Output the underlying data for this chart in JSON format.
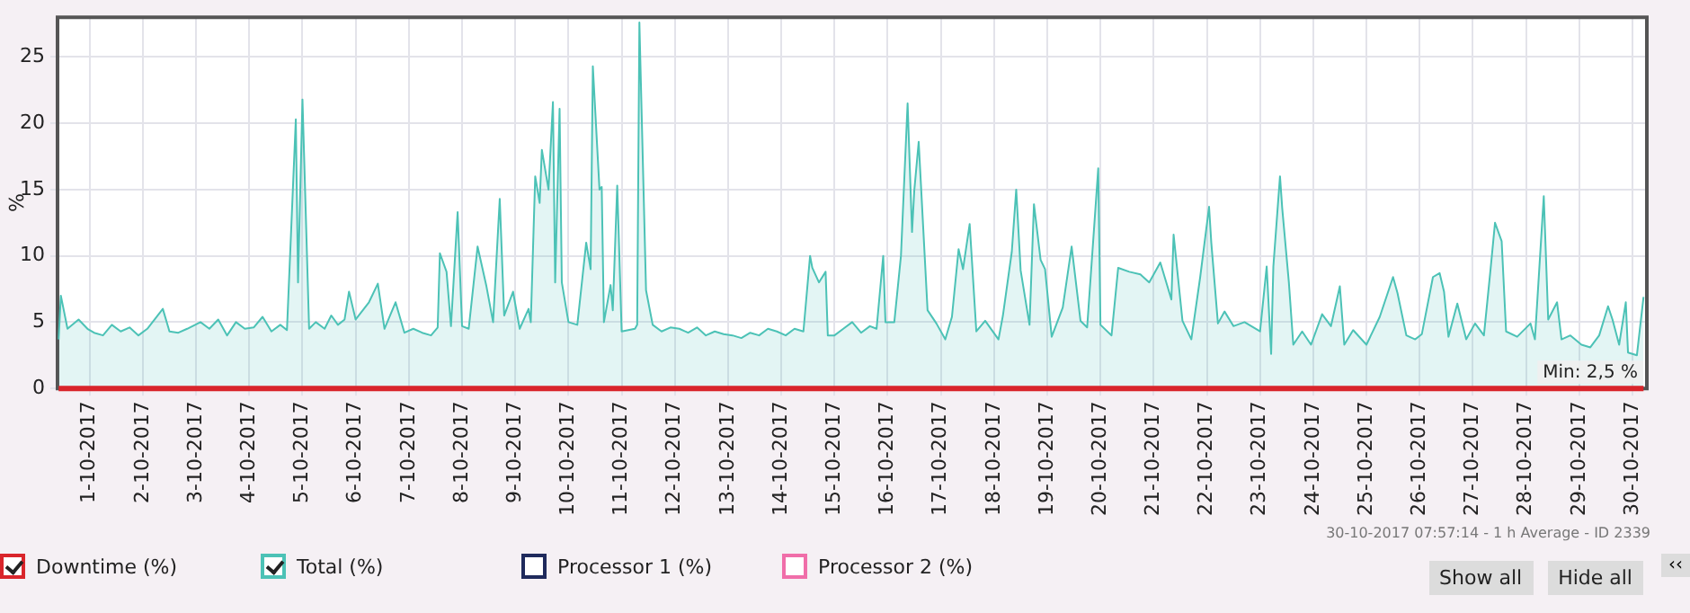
{
  "chart_data": {
    "type": "area",
    "ylabel": "%",
    "xlim": [
      "2017-09-30T09:30",
      "2017-10-30T06:30"
    ],
    "ylim": [
      0,
      28
    ],
    "yticks": [
      0,
      5,
      10,
      15,
      20,
      25
    ],
    "xticks": [
      {
        "value": "2017-10-01",
        "label": "1-10-2017"
      },
      {
        "value": "2017-10-02",
        "label": "2-10-2017"
      },
      {
        "value": "2017-10-03",
        "label": "3-10-2017"
      },
      {
        "value": "2017-10-04",
        "label": "4-10-2017"
      },
      {
        "value": "2017-10-05",
        "label": "5-10-2017"
      },
      {
        "value": "2017-10-06",
        "label": "6-10-2017"
      },
      {
        "value": "2017-10-07",
        "label": "7-10-2017"
      },
      {
        "value": "2017-10-08",
        "label": "8-10-2017"
      },
      {
        "value": "2017-10-09",
        "label": "9-10-2017"
      },
      {
        "value": "2017-10-10",
        "label": "10-10-2017"
      },
      {
        "value": "2017-10-11",
        "label": "11-10-2017"
      },
      {
        "value": "2017-10-12",
        "label": "12-10-2017"
      },
      {
        "value": "2017-10-13",
        "label": "13-10-2017"
      },
      {
        "value": "2017-10-14",
        "label": "14-10-2017"
      },
      {
        "value": "2017-10-15",
        "label": "15-10-2017"
      },
      {
        "value": "2017-10-16",
        "label": "16-10-2017"
      },
      {
        "value": "2017-10-17",
        "label": "17-10-2017"
      },
      {
        "value": "2017-10-18",
        "label": "18-10-2017"
      },
      {
        "value": "2017-10-19",
        "label": "19-10-2017"
      },
      {
        "value": "2017-10-20",
        "label": "20-10-2017"
      },
      {
        "value": "2017-10-21",
        "label": "21-10-2017"
      },
      {
        "value": "2017-10-22",
        "label": "22-10-2017"
      },
      {
        "value": "2017-10-23",
        "label": "23-10-2017"
      },
      {
        "value": "2017-10-24",
        "label": "24-10-2017"
      },
      {
        "value": "2017-10-25",
        "label": "25-10-2017"
      },
      {
        "value": "2017-10-26",
        "label": "26-10-2017"
      },
      {
        "value": "2017-10-27",
        "label": "27-10-2017"
      },
      {
        "value": "2017-10-28",
        "label": "28-10-2017"
      },
      {
        "value": "2017-10-29",
        "label": "29-10-2017"
      },
      {
        "value": "2017-10-30",
        "label": "30-10-2017"
      }
    ],
    "grid": true,
    "legend": "bottom left",
    "series": [
      {
        "name": "Downtime (%)",
        "type": "line",
        "color": "#d9252b",
        "x": [
          "2017-09-30T10:00",
          "2017-10-30T05:00"
        ],
        "values": [
          0,
          0
        ]
      },
      {
        "name": "Total (%)",
        "type": "area",
        "color": "#4cc2b6",
        "x": [
          "2017-09-30T10:00",
          "2017-09-30T11:00",
          "2017-09-30T14:00",
          "2017-09-30T19:00",
          "2017-09-30T23:00",
          "2017-10-01T02:00",
          "2017-10-01T06:00",
          "2017-10-01T10:00",
          "2017-10-01T14:00",
          "2017-10-01T18:00",
          "2017-10-01T22:00",
          "2017-10-02T02:00",
          "2017-10-02T09:00",
          "2017-10-02T12:00",
          "2017-10-02T16:00",
          "2017-10-02T20:00",
          "2017-10-03T02:00",
          "2017-10-03T06:00",
          "2017-10-03T10:00",
          "2017-10-03T14:00",
          "2017-10-03T18:00",
          "2017-10-03T22:00",
          "2017-10-04T02:00",
          "2017-10-04T06:00",
          "2017-10-04T10:00",
          "2017-10-04T14:00",
          "2017-10-04T17:00",
          "2017-10-04T21:00",
          "2017-10-04T22:00",
          "2017-10-05T00:00",
          "2017-10-05T03:00",
          "2017-10-05T06:00",
          "2017-10-05T10:00",
          "2017-10-05T13:00",
          "2017-10-05T16:00",
          "2017-10-05T19:00",
          "2017-10-05T21:00",
          "2017-10-06T00:00",
          "2017-10-06T06:00",
          "2017-10-06T10:00",
          "2017-10-06T13:00",
          "2017-10-06T18:00",
          "2017-10-06T22:00",
          "2017-10-07T02:00",
          "2017-10-07T06:00",
          "2017-10-07T10:00",
          "2017-10-07T13:00",
          "2017-10-07T14:00",
          "2017-10-07T17:00",
          "2017-10-07T19:00",
          "2017-10-07T22:00",
          "2017-10-08T00:00",
          "2017-10-08T03:00",
          "2017-10-08T07:00",
          "2017-10-08T11:00",
          "2017-10-08T14:00",
          "2017-10-08T17:00",
          "2017-10-08T19:00",
          "2017-10-08T23:00",
          "2017-10-09T02:00",
          "2017-10-09T06:00",
          "2017-10-09T07:00",
          "2017-10-09T09:00",
          "2017-10-09T11:00",
          "2017-10-09T12:00",
          "2017-10-09T15:00",
          "2017-10-09T17:00",
          "2017-10-09T18:00",
          "2017-10-09T20:00",
          "2017-10-09T21:00",
          "2017-10-10T00:00",
          "2017-10-10T04:00",
          "2017-10-10T08:00",
          "2017-10-10T10:00",
          "2017-10-10T11:00",
          "2017-10-10T14:00",
          "2017-10-10T15:00",
          "2017-10-10T16:00",
          "2017-10-10T19:00",
          "2017-10-10T20:00",
          "2017-10-10T22:00",
          "2017-10-11T00:00",
          "2017-10-11T06:00",
          "2017-10-11T07:00",
          "2017-10-11T08:00",
          "2017-10-11T11:00",
          "2017-10-11T14:00",
          "2017-10-11T18:00",
          "2017-10-11T22:00",
          "2017-10-12T02:00",
          "2017-10-12T06:00",
          "2017-10-12T10:00",
          "2017-10-12T14:00",
          "2017-10-12T18:00",
          "2017-10-12T22:00",
          "2017-10-13T02:00",
          "2017-10-13T06:00",
          "2017-10-13T10:00",
          "2017-10-13T14:00",
          "2017-10-13T18:00",
          "2017-10-13T22:00",
          "2017-10-14T02:00",
          "2017-10-14T06:00",
          "2017-10-14T10:00",
          "2017-10-14T13:00",
          "2017-10-14T14:00",
          "2017-10-14T17:00",
          "2017-10-14T20:00",
          "2017-10-14T21:00",
          "2017-10-15T00:00",
          "2017-10-15T04:00",
          "2017-10-15T08:00",
          "2017-10-15T12:00",
          "2017-10-15T16:00",
          "2017-10-15T19:00",
          "2017-10-15T22:00",
          "2017-10-15T23:00",
          "2017-10-16T03:00",
          "2017-10-16T06:00",
          "2017-10-16T09:00",
          "2017-10-16T11:00",
          "2017-10-16T12:00",
          "2017-10-16T14:00",
          "2017-10-16T18:00",
          "2017-10-16T22:00",
          "2017-10-17T02:00",
          "2017-10-17T05:00",
          "2017-10-17T08:00",
          "2017-10-17T10:00",
          "2017-10-17T13:00",
          "2017-10-17T16:00",
          "2017-10-17T20:00",
          "2017-10-18T02:00",
          "2017-10-18T04:00",
          "2017-10-18T08:00",
          "2017-10-18T10:00",
          "2017-10-18T12:00",
          "2017-10-18T16:00",
          "2017-10-18T18:00",
          "2017-10-18T21:00",
          "2017-10-18T23:00",
          "2017-10-19T02:00",
          "2017-10-19T07:00",
          "2017-10-19T11:00",
          "2017-10-19T15:00",
          "2017-10-19T18:00",
          "2017-10-19T23:00",
          "2017-10-20T00:00",
          "2017-10-20T05:00",
          "2017-10-20T08:00",
          "2017-10-20T13:00",
          "2017-10-20T18:00",
          "2017-10-20T22:00",
          "2017-10-21T03:00",
          "2017-10-21T08:00",
          "2017-10-21T09:00",
          "2017-10-21T13:00",
          "2017-10-21T17:00",
          "2017-10-21T21:00",
          "2017-10-22T01:00",
          "2017-10-22T02:00",
          "2017-10-22T05:00",
          "2017-10-22T08:00",
          "2017-10-22T12:00",
          "2017-10-22T17:00",
          "2017-10-23T00:00",
          "2017-10-23T03:00",
          "2017-10-23T05:00",
          "2017-10-23T06:00",
          "2017-10-23T09:00",
          "2017-10-23T10:00",
          "2017-10-23T13:00",
          "2017-10-23T15:00",
          "2017-10-23T19:00",
          "2017-10-23T23:00",
          "2017-10-24T04:00",
          "2017-10-24T08:00",
          "2017-10-24T12:00",
          "2017-10-24T14:00",
          "2017-10-24T18:00",
          "2017-10-25T00:00",
          "2017-10-25T06:00",
          "2017-10-25T12:00",
          "2017-10-25T14:00",
          "2017-10-25T18:00",
          "2017-10-25T22:00",
          "2017-10-26T01:00",
          "2017-10-26T06:00",
          "2017-10-26T09:00",
          "2017-10-26T11:00",
          "2017-10-26T13:00",
          "2017-10-26T17:00",
          "2017-10-26T21:00",
          "2017-10-27T01:00",
          "2017-10-27T05:00",
          "2017-10-27T08:00",
          "2017-10-27T10:00",
          "2017-10-27T13:00",
          "2017-10-27T15:00",
          "2017-10-27T20:00",
          "2017-10-28T02:00",
          "2017-10-28T04:00",
          "2017-10-28T08:00",
          "2017-10-28T10:00",
          "2017-10-28T14:00",
          "2017-10-28T16:00",
          "2017-10-28T20:00",
          "2017-10-29T01:00",
          "2017-10-29T05:00",
          "2017-10-29T09:00",
          "2017-10-29T13:00",
          "2017-10-29T15:00",
          "2017-10-29T18:00",
          "2017-10-29T21:00",
          "2017-10-29T22:00",
          "2017-10-30T02:00",
          "2017-10-30T05:00"
        ],
        "values": [
          3.7,
          7.0,
          4.5,
          5.2,
          4.5,
          4.2,
          4.0,
          4.8,
          4.3,
          4.6,
          4.0,
          4.5,
          6.0,
          4.3,
          4.2,
          4.5,
          5.0,
          4.5,
          5.2,
          4.0,
          5.0,
          4.5,
          4.6,
          5.4,
          4.3,
          4.8,
          4.4,
          20.3,
          8.0,
          21.8,
          4.5,
          5.0,
          4.5,
          5.5,
          4.8,
          5.2,
          7.3,
          5.2,
          6.5,
          7.9,
          4.5,
          6.5,
          4.2,
          4.5,
          4.2,
          4.0,
          4.6,
          10.2,
          8.8,
          4.7,
          13.3,
          4.7,
          4.5,
          10.7,
          7.7,
          5.0,
          14.3,
          5.5,
          7.3,
          4.5,
          6.0,
          5.0,
          16.0,
          14.0,
          18.0,
          15.0,
          21.6,
          8.0,
          21.1,
          8.0,
          5.0,
          4.8,
          11.0,
          9.0,
          24.3,
          15.0,
          15.2,
          5.0,
          7.8,
          5.9,
          15.3,
          4.3,
          4.5,
          4.8,
          27.6,
          7.4,
          4.8,
          4.3,
          4.6,
          4.5,
          4.2,
          4.6,
          4.0,
          4.3,
          4.1,
          4.0,
          3.8,
          4.2,
          4.0,
          4.5,
          4.3,
          4.0,
          4.5,
          4.3,
          10.0,
          9.1,
          8.0,
          8.8,
          4.0,
          4.0,
          4.5,
          5.0,
          4.2,
          4.7,
          4.5,
          10.0,
          5.0,
          5.0,
          10.0,
          21.5,
          11.8,
          14.9,
          18.6,
          5.9,
          4.9,
          3.7,
          5.4,
          10.5,
          9.0,
          12.4,
          4.3,
          5.1,
          3.7,
          5.5,
          10.3,
          15.0,
          8.9,
          4.8,
          13.9,
          9.7,
          9.0,
          3.9,
          6.1,
          10.7,
          5.1,
          4.6,
          16.6,
          4.8,
          4.0,
          9.1,
          8.8,
          8.6,
          8.0,
          9.5,
          6.7,
          11.6,
          5.1,
          3.7,
          8.4,
          13.7,
          11.0,
          4.9,
          5.8,
          4.7,
          5.0,
          4.3,
          9.2,
          2.6,
          9.2,
          16.0,
          13.6,
          8.0,
          3.3,
          4.3,
          3.3,
          5.6,
          4.7,
          7.7,
          3.3,
          4.4,
          3.3,
          5.4,
          8.4,
          7.2,
          4.0,
          3.7,
          4.1,
          8.4,
          8.7,
          7.3,
          3.9,
          6.4,
          3.7,
          4.9,
          4.0,
          9.0,
          12.5,
          11.1,
          4.3,
          3.9,
          4.9,
          3.7,
          14.5,
          5.2,
          6.5,
          3.7,
          4.0,
          3.3,
          3.1,
          4.0,
          6.2,
          5.2,
          3.3,
          6.5,
          2.7,
          2.5,
          6.9
        ]
      },
      {
        "name": "Processor 1 (%)",
        "type": "line",
        "color": "#1f2a5c"
      },
      {
        "name": "Processor 2 (%)",
        "type": "line",
        "color": "#f06ea9"
      }
    ],
    "annotations": [
      {
        "text": "Min: 2,5 %",
        "x": "2017-10-30T02:00",
        "y": 2.5
      },
      "30-10-2017 07:57:14 - 1 h Average - ID 2339",
      "Show all",
      "Hide all",
      "‹‹"
    ]
  }
}
